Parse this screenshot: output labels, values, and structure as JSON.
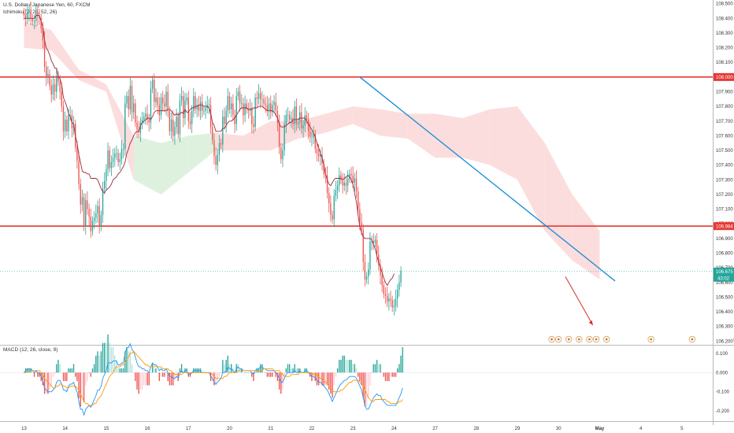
{
  "header": {
    "title": "U.S. Dollar / Japanese Yen, 60, FXCM",
    "indicator": "Ichimoku (9, 26, 52, 26)"
  },
  "macd": {
    "label": "MACD (12, 26, close, 9)",
    "ticks": [
      "0.100",
      "0.000",
      "-0.100",
      "-0.200"
    ],
    "tick_values": [
      0.1,
      0.0,
      -0.1,
      -0.2
    ],
    "range": [
      -0.24,
      0.14
    ]
  },
  "price_axis": {
    "ticks": [
      "108.500",
      "108.400",
      "108.300",
      "108.200",
      "108.100",
      "108.000",
      "107.900",
      "107.800",
      "107.700",
      "107.600",
      "107.500",
      "107.400",
      "107.300",
      "107.200",
      "107.100",
      "107.000",
      "106.900",
      "106.800",
      "106.700",
      "106.600",
      "106.500",
      "106.400",
      "106.300",
      "106.200"
    ],
    "tick_values": [
      108.5,
      108.4,
      108.3,
      108.2,
      108.1,
      108.0,
      107.9,
      107.8,
      107.7,
      107.6,
      107.5,
      107.4,
      107.3,
      107.2,
      107.1,
      107.0,
      106.9,
      106.8,
      106.7,
      106.6,
      106.5,
      106.4,
      106.3,
      106.2
    ],
    "range": [
      106.175,
      108.525
    ],
    "level_tags": [
      {
        "text": "108.000",
        "value": 108.0
      },
      {
        "text": "106.984",
        "value": 106.984
      }
    ],
    "current_price": {
      "text": "106.675",
      "value": 106.675,
      "countdown": "43:02"
    }
  },
  "time_axis": {
    "labels": [
      "13",
      "14",
      "15",
      "16",
      "17",
      "20",
      "21",
      "22",
      "23",
      "24",
      "27",
      "28",
      "29",
      "30",
      "May",
      "4",
      "5"
    ],
    "label_positions": [
      0,
      24,
      48,
      72,
      96,
      120,
      144,
      168,
      192,
      216,
      240,
      264,
      288,
      312,
      336,
      360,
      384
    ],
    "x_range": [
      -14,
      402
    ]
  },
  "colors": {
    "up": "#26a69a",
    "down": "#ef5350",
    "resistance_line": "#e53935",
    "trend_line": "#1e90d6",
    "arrow": "#d32f2f",
    "kijun": "#9c2a3a",
    "cloud_bear": "#fbd5d5",
    "cloud_bull": "#d6eed6",
    "macd_line": "#2196f3",
    "signal_line": "#ff9800",
    "current_tag": "#26a69a",
    "level_tag": "#e53935"
  },
  "chart_data": {
    "type": "candlestick",
    "series": [
      {
        "name": "price",
        "closes": [
          108.42,
          108.4,
          108.44,
          108.46,
          108.4,
          108.38,
          108.38,
          108.44,
          108.41,
          108.4,
          108.33,
          108.25,
          108.07,
          108.0,
          108.02,
          107.94,
          107.88,
          107.95,
          107.9,
          108.01,
          107.97,
          107.9,
          107.8,
          107.63,
          107.71,
          107.63,
          107.74,
          107.74,
          107.65,
          107.68,
          107.52,
          107.43,
          107.27,
          107.13,
          107.18,
          106.98,
          107.16,
          107.1,
          107.05,
          106.95,
          107.02,
          107.04,
          107.07,
          107.12,
          106.98,
          107.06,
          107.24,
          107.29,
          107.37,
          107.5,
          107.38,
          107.42,
          107.45,
          107.48,
          107.48,
          107.42,
          107.44,
          107.51,
          107.51,
          107.82,
          107.87,
          107.78,
          107.94,
          107.76,
          107.82,
          107.69,
          107.64,
          107.62,
          107.69,
          107.71,
          107.73,
          107.75,
          107.71,
          107.69,
          107.92,
          107.98,
          107.83,
          107.86,
          107.81,
          107.74,
          107.86,
          107.82,
          107.8,
          107.9,
          107.77,
          107.63,
          107.71,
          107.6,
          107.66,
          107.73,
          107.61,
          107.84,
          107.87,
          107.72,
          107.84,
          107.86,
          107.7,
          107.68,
          107.77,
          107.87,
          107.78,
          107.81,
          107.77,
          107.83,
          107.77,
          107.77,
          107.79,
          107.81,
          107.81,
          107.66,
          107.57,
          107.46,
          107.4,
          107.47,
          107.55,
          107.54,
          107.73,
          107.68,
          107.77,
          107.87,
          107.78,
          107.82,
          107.74,
          107.68,
          107.87,
          107.9,
          107.82,
          107.82,
          107.74,
          107.82,
          107.78,
          107.77,
          107.79,
          107.68,
          107.66,
          107.86,
          107.85,
          107.89,
          107.85,
          107.85,
          107.82,
          107.81,
          107.77,
          107.82,
          107.76,
          107.81,
          107.83,
          107.77,
          107.69,
          107.52,
          107.44,
          107.5,
          107.68,
          107.74,
          107.74,
          107.71,
          107.72,
          107.68,
          107.8,
          107.68,
          107.69,
          107.76,
          107.65,
          107.67,
          107.74,
          107.71,
          107.63,
          107.59,
          107.59,
          107.61,
          107.51,
          107.48,
          107.46,
          107.47,
          107.41,
          107.34,
          107.33,
          107.21,
          107.14,
          107.06,
          107.03,
          107.19,
          107.23,
          107.26,
          107.33,
          107.3,
          107.26,
          107.28,
          107.26,
          107.31,
          107.34,
          107.33,
          107.28,
          107.31,
          107.22,
          107.1,
          107.01,
          106.96,
          106.74,
          106.62,
          106.64,
          106.69,
          106.88,
          106.88,
          106.87,
          106.89,
          106.79,
          106.72,
          106.65,
          106.58,
          106.52,
          106.51,
          106.47,
          106.49,
          106.48,
          106.43,
          106.44,
          106.49,
          106.55,
          106.6,
          106.68
        ]
      }
    ],
    "ichimoku_kijun": [
      108.4,
      108.4,
      108.4,
      108.4,
      108.4,
      108.4,
      108.4,
      108.42,
      108.42,
      108.42,
      108.38,
      108.34,
      108.25,
      108.2,
      108.18,
      108.15,
      108.11,
      108.09,
      108.06,
      108.06,
      108.0,
      107.99,
      107.95,
      107.86,
      107.83,
      107.8,
      107.75,
      107.73,
      107.69,
      107.68,
      107.6,
      107.55,
      107.47,
      107.42,
      107.36,
      107.35,
      107.35,
      107.34,
      107.34,
      107.31,
      107.31,
      107.31,
      107.31,
      107.3,
      107.27,
      107.24,
      107.22,
      107.21,
      107.23,
      107.24,
      107.25,
      107.27,
      107.3,
      107.31,
      107.32,
      107.34,
      107.35,
      107.37,
      107.39,
      107.42,
      107.48,
      107.51,
      107.55,
      107.57,
      107.6,
      107.62,
      107.63,
      107.63,
      107.67,
      107.69,
      107.7,
      107.71,
      107.72,
      107.72,
      107.71,
      107.73,
      107.76,
      107.77,
      107.77,
      107.77,
      107.77,
      107.77,
      107.77,
      107.77,
      107.78,
      107.78,
      107.77,
      107.75,
      107.74,
      107.75,
      107.74,
      107.75,
      107.76,
      107.75,
      107.78,
      107.76,
      107.76,
      107.78,
      107.79,
      107.79,
      107.8,
      107.8,
      107.81,
      107.81,
      107.81,
      107.8,
      107.8,
      107.8,
      107.79,
      107.75,
      107.69,
      107.67,
      107.63,
      107.63,
      107.63,
      107.63,
      107.65,
      107.65,
      107.67,
      107.69,
      107.7,
      107.7,
      107.71,
      107.72,
      107.74,
      107.76,
      107.78,
      107.79,
      107.79,
      107.79,
      107.79,
      107.78,
      107.78,
      107.78,
      107.79,
      107.79,
      107.79,
      107.8,
      107.8,
      107.8,
      107.79,
      107.78,
      107.77,
      107.77,
      107.77,
      107.77,
      107.76,
      107.74,
      107.72,
      107.68,
      107.66,
      107.66,
      107.66,
      107.67,
      107.68,
      107.69,
      107.69,
      107.71,
      107.71,
      107.71,
      107.71,
      107.72,
      107.72,
      107.72,
      107.72,
      107.7,
      107.68,
      107.66,
      107.64,
      107.62,
      107.59,
      107.55,
      107.52,
      107.48,
      107.45,
      107.4,
      107.34,
      107.3,
      107.27,
      107.26,
      107.28,
      107.3,
      107.31,
      107.31,
      107.31,
      107.31,
      107.3,
      107.31,
      107.32,
      107.33,
      107.32,
      107.3,
      107.27,
      107.21,
      107.15,
      107.06,
      106.98,
      106.94,
      106.91,
      106.9,
      106.9,
      106.9,
      106.9,
      106.89,
      106.86,
      106.83,
      106.78,
      106.74,
      106.7,
      106.67,
      106.63,
      106.6,
      106.58,
      106.6,
      106.62,
      106.63,
      106.66
    ],
    "ichimoku_cloud": {
      "x": [
        0,
        16,
        32,
        48,
        64,
        80,
        96,
        112,
        128,
        144,
        160,
        176,
        192,
        208,
        224,
        240,
        256,
        272,
        288,
        304,
        320,
        336
      ],
      "upper": [
        108.38,
        108.32,
        108.05,
        107.95,
        107.6,
        107.55,
        107.6,
        107.62,
        107.6,
        107.7,
        107.7,
        107.75,
        107.8,
        107.78,
        107.75,
        107.75,
        107.72,
        107.78,
        107.8,
        107.55,
        107.2,
        106.95
      ],
      "lower": [
        108.2,
        108.18,
        107.98,
        107.9,
        107.3,
        107.2,
        107.35,
        107.5,
        107.5,
        107.5,
        107.58,
        107.62,
        107.68,
        107.6,
        107.58,
        107.45,
        107.45,
        107.4,
        107.3,
        106.95,
        106.75,
        106.62
      ]
    },
    "macd_values": [
      0.0,
      0.01,
      0.02,
      0.02,
      0.02,
      0.01,
      0.0,
      0.01,
      0.0,
      0.0,
      -0.02,
      -0.04,
      -0.08,
      -0.09,
      -0.1,
      -0.1,
      -0.1,
      -0.09,
      -0.08,
      -0.05,
      -0.04,
      -0.04,
      -0.06,
      -0.09,
      -0.09,
      -0.1,
      -0.07,
      -0.06,
      -0.06,
      -0.05,
      -0.08,
      -0.1,
      -0.15,
      -0.19,
      -0.19,
      -0.22,
      -0.19,
      -0.18,
      -0.17,
      -0.18,
      -0.16,
      -0.14,
      -0.12,
      -0.09,
      -0.09,
      -0.07,
      -0.03,
      -0.01,
      0.01,
      0.05,
      0.05,
      0.05,
      0.06,
      0.06,
      0.06,
      0.04,
      0.04,
      0.05,
      0.05,
      0.1,
      0.13,
      0.13,
      0.15,
      0.12,
      0.11,
      0.08,
      0.05,
      0.03,
      0.03,
      0.02,
      0.02,
      0.01,
      0.01,
      0.0,
      0.03,
      0.05,
      0.04,
      0.04,
      0.03,
      0.01,
      0.02,
      0.01,
      0.01,
      0.02,
      0.0,
      -0.02,
      -0.02,
      -0.03,
      -0.03,
      -0.02,
      -0.03,
      0.0,
      0.01,
      0.0,
      0.01,
      0.01,
      -0.01,
      -0.01,
      0.0,
      0.01,
      0.01,
      0.01,
      0.01,
      0.01,
      0.0,
      0.0,
      0.0,
      0.0,
      0.0,
      -0.02,
      -0.03,
      -0.05,
      -0.06,
      -0.05,
      -0.04,
      -0.03,
      0.0,
      0.0,
      0.01,
      0.03,
      0.02,
      0.02,
      0.01,
      0.0,
      0.02,
      0.03,
      0.02,
      0.02,
      0.01,
      0.01,
      0.01,
      0.01,
      0.01,
      0.0,
      -0.01,
      0.01,
      0.02,
      0.02,
      0.03,
      0.03,
      0.02,
      0.02,
      0.01,
      0.01,
      0.01,
      0.01,
      0.01,
      0.0,
      -0.01,
      -0.03,
      -0.05,
      -0.05,
      -0.03,
      -0.01,
      0.0,
      0.0,
      0.0,
      0.0,
      0.01,
      0.0,
      0.0,
      0.01,
      0.0,
      0.0,
      0.01,
      0.01,
      0.0,
      -0.01,
      -0.02,
      -0.02,
      -0.03,
      -0.04,
      -0.05,
      -0.05,
      -0.06,
      -0.07,
      -0.08,
      -0.09,
      -0.11,
      -0.13,
      -0.15,
      -0.13,
      -0.11,
      -0.09,
      -0.07,
      -0.06,
      -0.05,
      -0.04,
      -0.04,
      -0.03,
      -0.02,
      -0.02,
      -0.02,
      -0.02,
      -0.03,
      -0.05,
      -0.07,
      -0.09,
      -0.13,
      -0.17,
      -0.19,
      -0.19,
      -0.17,
      -0.15,
      -0.13,
      -0.12,
      -0.11,
      -0.12,
      -0.12,
      -0.14,
      -0.15,
      -0.16,
      -0.17,
      -0.17,
      -0.17,
      -0.17,
      -0.17,
      -0.17,
      -0.15,
      -0.13,
      -0.11,
      -0.08
    ],
    "macd_signal": [
      0.0,
      0.0,
      0.01,
      0.01,
      0.01,
      0.01,
      0.01,
      0.01,
      0.01,
      0.01,
      0.0,
      -0.01,
      -0.03,
      -0.04,
      -0.05,
      -0.06,
      -0.07,
      -0.08,
      -0.08,
      -0.07,
      -0.07,
      -0.06,
      -0.06,
      -0.07,
      -0.07,
      -0.08,
      -0.08,
      -0.07,
      -0.07,
      -0.07,
      -0.07,
      -0.08,
      -0.09,
      -0.11,
      -0.13,
      -0.15,
      -0.16,
      -0.16,
      -0.17,
      -0.17,
      -0.17,
      -0.16,
      -0.16,
      -0.14,
      -0.13,
      -0.12,
      -0.1,
      -0.08,
      -0.06,
      -0.04,
      -0.02,
      -0.01,
      0.0,
      0.02,
      0.03,
      0.03,
      0.03,
      0.04,
      0.04,
      0.05,
      0.07,
      0.08,
      0.1,
      0.1,
      0.11,
      0.1,
      0.09,
      0.08,
      0.07,
      0.06,
      0.05,
      0.04,
      0.04,
      0.03,
      0.03,
      0.03,
      0.03,
      0.03,
      0.03,
      0.03,
      0.03,
      0.02,
      0.02,
      0.02,
      0.02,
      0.01,
      0.01,
      0.0,
      -0.01,
      -0.01,
      -0.01,
      -0.01,
      -0.01,
      0.0,
      0.0,
      0.0,
      0.0,
      0.0,
      0.0,
      0.0,
      0.0,
      0.0,
      0.0,
      0.0,
      0.0,
      0.0,
      0.0,
      0.0,
      0.0,
      0.0,
      -0.01,
      -0.02,
      -0.03,
      -0.03,
      -0.03,
      -0.03,
      -0.03,
      -0.02,
      -0.02,
      -0.01,
      0.0,
      0.0,
      0.0,
      0.0,
      0.0,
      0.01,
      0.01,
      0.01,
      0.01,
      0.01,
      0.01,
      0.01,
      0.01,
      0.01,
      0.01,
      0.01,
      0.01,
      0.01,
      0.01,
      0.01,
      0.02,
      0.02,
      0.02,
      0.02,
      0.02,
      0.02,
      0.01,
      0.01,
      0.01,
      0.01,
      0.0,
      -0.01,
      -0.02,
      -0.02,
      -0.02,
      -0.02,
      -0.01,
      -0.01,
      -0.01,
      -0.01,
      -0.01,
      -0.0,
      -0.0,
      0.0,
      0.0,
      0.0,
      0.0,
      0.0,
      -0.0,
      -0.01,
      -0.01,
      -0.01,
      -0.02,
      -0.03,
      -0.03,
      -0.04,
      -0.05,
      -0.06,
      -0.07,
      -0.08,
      -0.09,
      -0.1,
      -0.1,
      -0.1,
      -0.1,
      -0.09,
      -0.09,
      -0.08,
      -0.07,
      -0.06,
      -0.05,
      -0.05,
      -0.04,
      -0.04,
      -0.04,
      -0.04,
      -0.05,
      -0.06,
      -0.07,
      -0.09,
      -0.11,
      -0.13,
      -0.14,
      -0.15,
      -0.15,
      -0.14,
      -0.14,
      -0.14,
      -0.14,
      -0.14,
      -0.14,
      -0.14,
      -0.15,
      -0.15,
      -0.16,
      -0.16,
      -0.16,
      -0.16,
      -0.16,
      -0.15,
      -0.15,
      -0.14
    ]
  },
  "events": [
    "flag",
    "6",
    "flag",
    "flag",
    "flag",
    "flag",
    "6",
    "2",
    "2",
    "1"
  ]
}
